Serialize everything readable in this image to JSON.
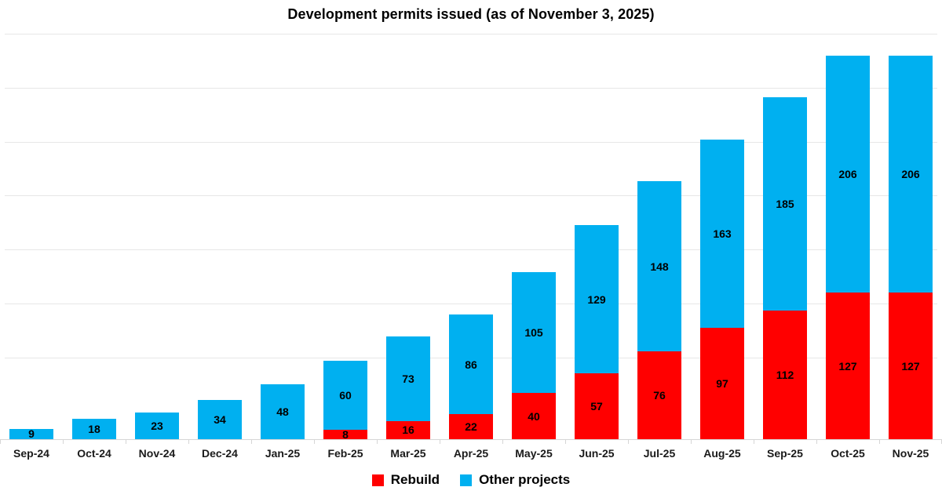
{
  "title": "Development permits issued (as of November 3, 2025)",
  "chart_data": {
    "type": "bar",
    "stacked": true,
    "title": "Development permits issued (as of November 3, 2025)",
    "categories": [
      "Sep-24",
      "Oct-24",
      "Nov-24",
      "Dec-24",
      "Jan-25",
      "Feb-25",
      "Mar-25",
      "Apr-25",
      "May-25",
      "Jun-25",
      "Jul-25",
      "Aug-25",
      "Sep-25",
      "Oct-25",
      "Nov-25"
    ],
    "series": [
      {
        "name": "Rebuild",
        "color": "#ff0000",
        "values": [
          0,
          0,
          0,
          0,
          0,
          8,
          16,
          22,
          40,
          57,
          76,
          97,
          112,
          127,
          127
        ]
      },
      {
        "name": "Other projects",
        "color": "#00b0f0",
        "values": [
          9,
          18,
          23,
          34,
          48,
          60,
          73,
          86,
          105,
          129,
          148,
          163,
          185,
          206,
          206
        ]
      }
    ],
    "totals": [
      9,
      18,
      23,
      34,
      48,
      68,
      89,
      108,
      145,
      186,
      224,
      260,
      297,
      333,
      333
    ],
    "data_labels": true,
    "xlabel": "",
    "ylabel": "",
    "ylim": [
      0,
      352
    ],
    "grid": true,
    "y_axis_labels_visible": false,
    "legend_position": "bottom"
  },
  "colors": {
    "rebuild": "#ff0000",
    "other_projects": "#00b0f0",
    "gridline": "#e7e7e7",
    "axis": "#d6d6d6",
    "text": "#000000"
  }
}
